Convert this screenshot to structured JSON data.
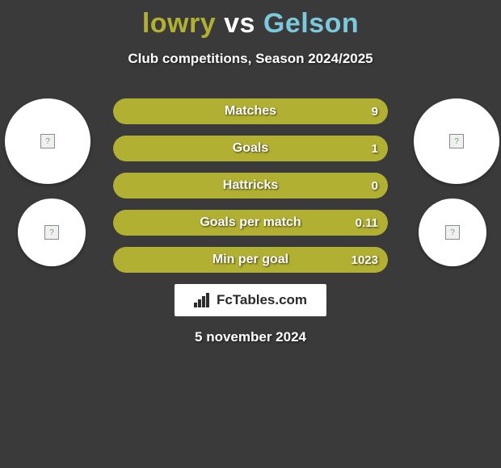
{
  "title": {
    "player1": "lowry",
    "vs": "vs",
    "player2": "Gelson",
    "player1_color": "#b2b032",
    "player2_color": "#7cc8dc",
    "vs_color": "#ffffff"
  },
  "subtitle": "Club competitions, Season 2024/2025",
  "background_color": "#3a3a3a",
  "circle_bg": "#ffffff",
  "stats": {
    "fill_color": "#b2b032",
    "border_color": "#b2b032",
    "label_color": "#ffffff",
    "rows": [
      {
        "label": "Matches",
        "left": "",
        "right": "9",
        "fill_pct": 100
      },
      {
        "label": "Goals",
        "left": "",
        "right": "1",
        "fill_pct": 100
      },
      {
        "label": "Hattricks",
        "left": "",
        "right": "0",
        "fill_pct": 100
      },
      {
        "label": "Goals per match",
        "left": "",
        "right": "0.11",
        "fill_pct": 100
      },
      {
        "label": "Min per goal",
        "left": "",
        "right": "1023",
        "fill_pct": 100
      }
    ]
  },
  "branding": "FcTables.com",
  "date": "5 november 2024"
}
